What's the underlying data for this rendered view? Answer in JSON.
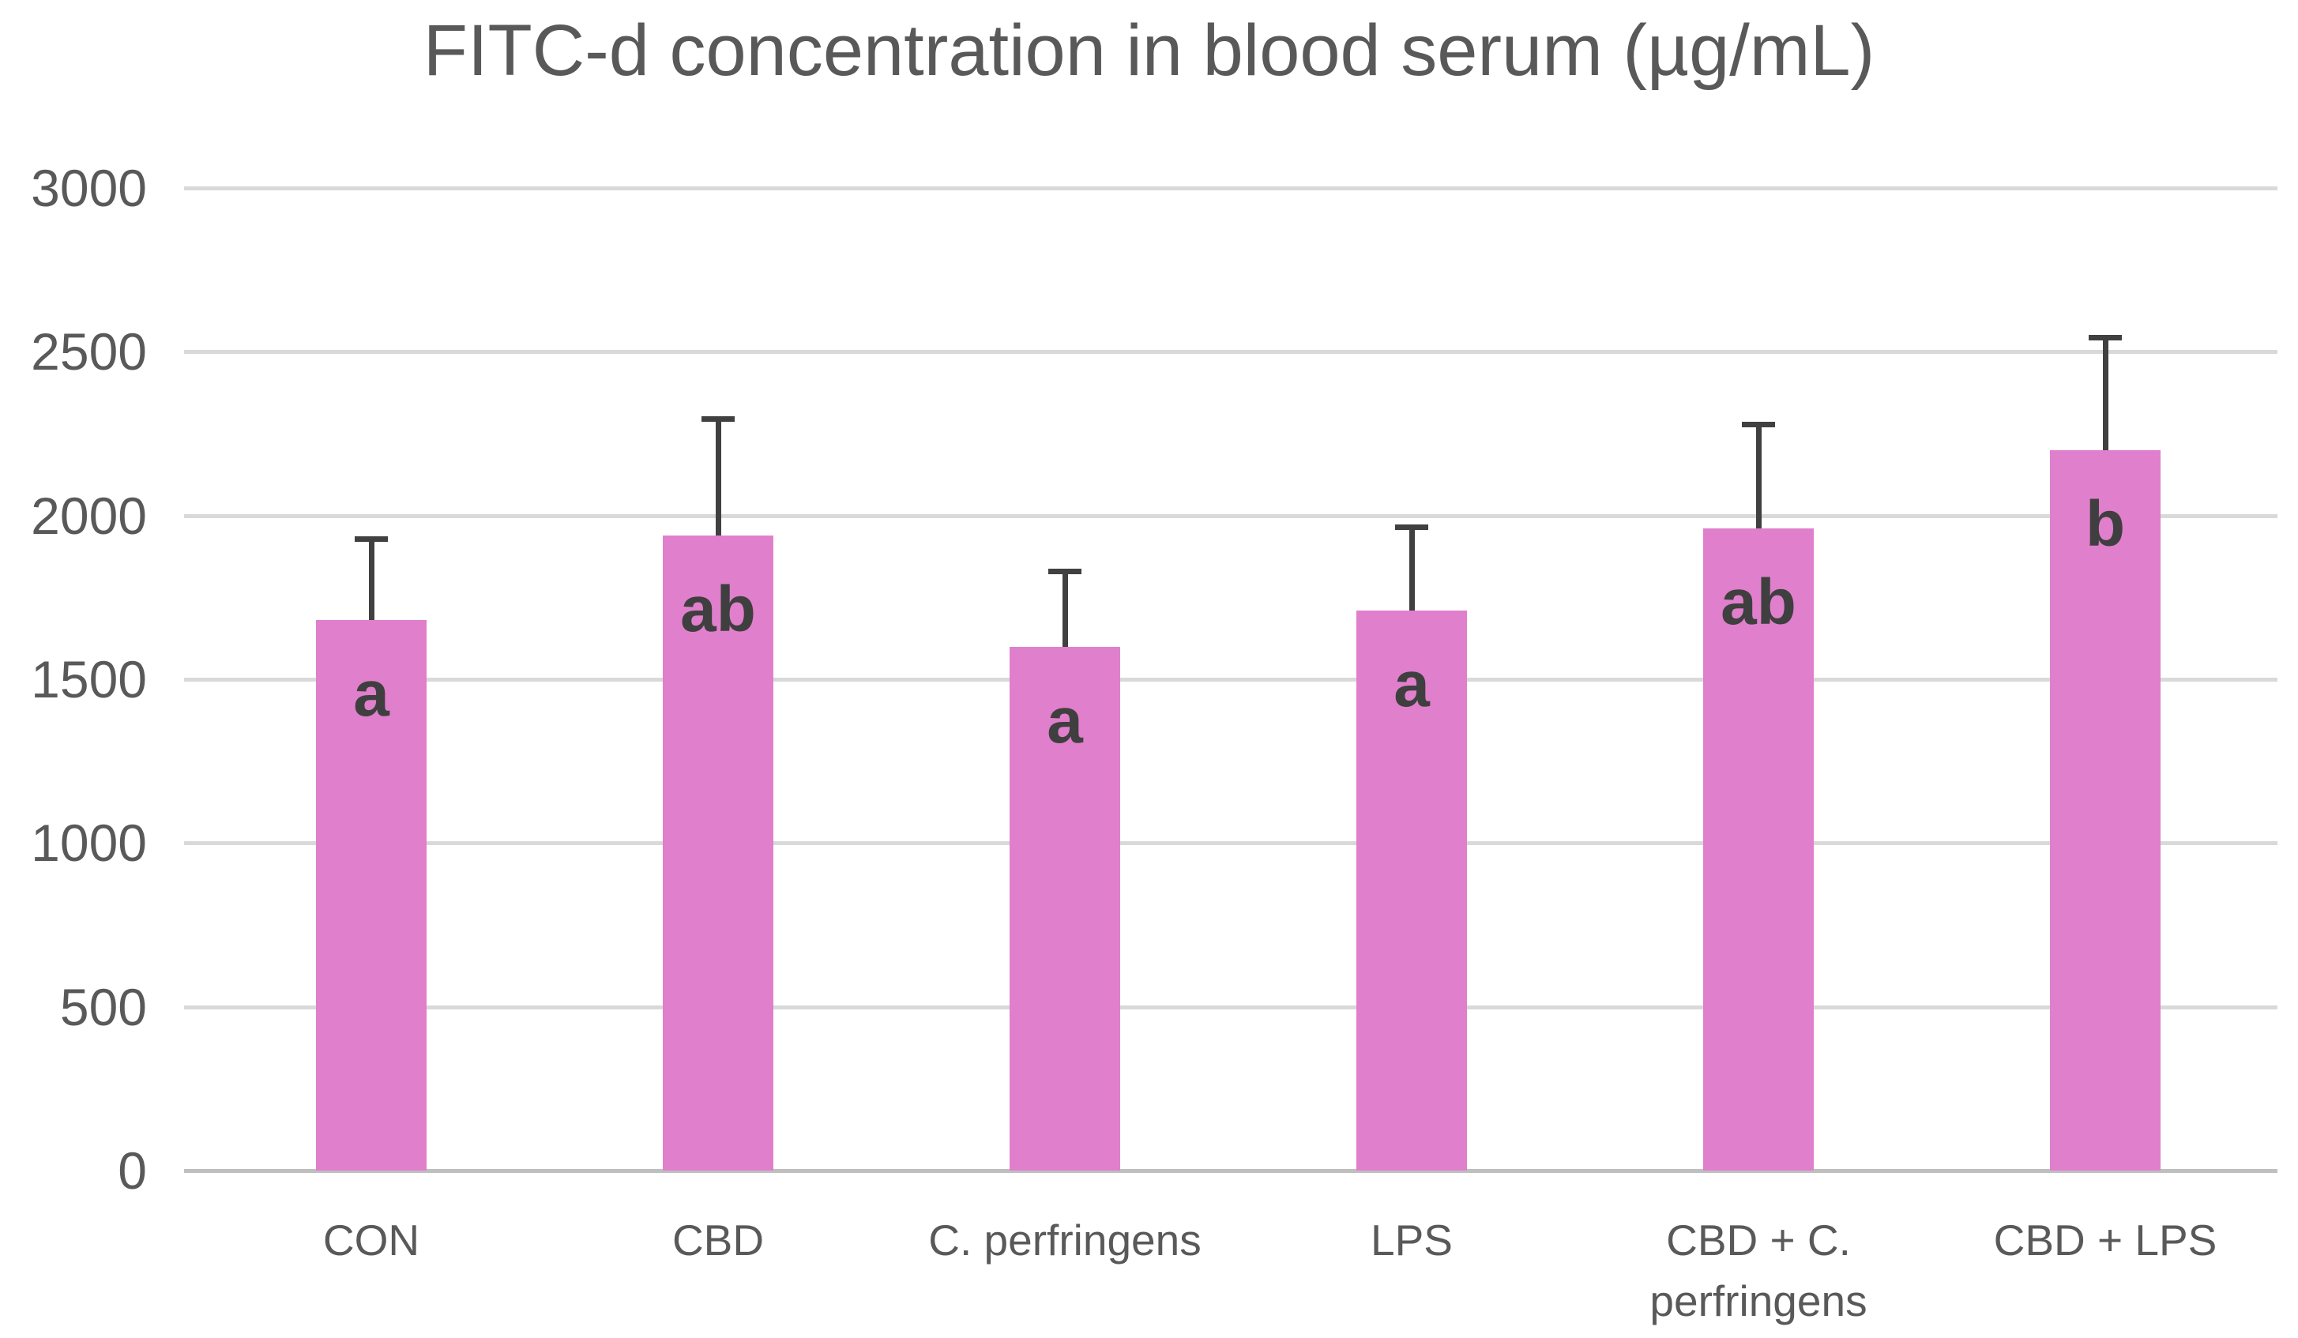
{
  "chart_data": {
    "type": "bar",
    "title": "FITC-d concentration in blood serum (µg/mL)",
    "categories": [
      "CON",
      "CBD",
      "C. perfringens",
      "LPS",
      "CBD + C. perfringens",
      "CBD + LPS"
    ],
    "values": [
      1680,
      1940,
      1600,
      1710,
      1960,
      2200
    ],
    "error_upper": [
      250,
      355,
      230,
      255,
      320,
      345
    ],
    "significance_letters": [
      "a",
      "ab",
      "a",
      "a",
      "ab",
      "b"
    ],
    "xlabel": "",
    "ylabel": "",
    "ylim": [
      0,
      3000
    ],
    "yticks": [
      0,
      500,
      1000,
      1500,
      2000,
      2500,
      3000
    ],
    "grid": "horizontal",
    "legend": "none",
    "colors": {
      "bar_fill": "#E07FCC",
      "error_bar": "#404040",
      "significance_letter": "#3F3F3F",
      "gridline": "#D9D9D9",
      "axis_line": "#BFBFBF",
      "text": "#595959",
      "background": "#FFFFFF"
    }
  }
}
